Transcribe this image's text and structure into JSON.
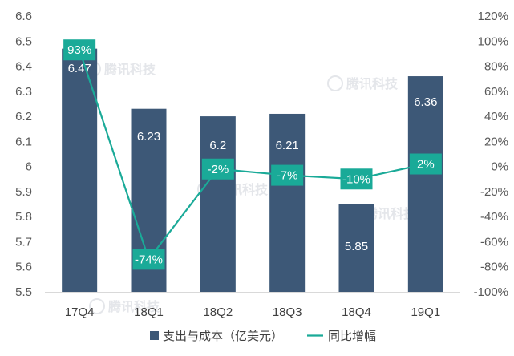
{
  "chart_data": {
    "type": "bar",
    "categories": [
      "17Q4",
      "18Q1",
      "18Q2",
      "18Q3",
      "18Q4",
      "19Q1"
    ],
    "series": [
      {
        "name": "支出与成本（亿美元）",
        "type": "bar",
        "axis": "left",
        "color": "#3d5877",
        "values": [
          6.47,
          6.23,
          6.2,
          6.21,
          5.85,
          6.36
        ],
        "labels": [
          "6.47",
          "6.23",
          "6.2",
          "6.21",
          "5.85",
          "6.36"
        ]
      },
      {
        "name": "同比增幅",
        "type": "line",
        "axis": "right",
        "color": "#1aaa98",
        "values": [
          93,
          -74,
          -2,
          -7,
          -10,
          2
        ],
        "labels": [
          "93%",
          "-74%",
          "-2%",
          "-7%",
          "-10%",
          "2%"
        ]
      }
    ],
    "y_left": {
      "range": [
        5.5,
        6.6
      ],
      "ticks": [
        "5.5",
        "5.6",
        "5.7",
        "5.8",
        "5.9",
        "6",
        "6.1",
        "6.2",
        "6.3",
        "6.4",
        "6.5",
        "6.6"
      ]
    },
    "y_right": {
      "range": [
        -100,
        120
      ],
      "ticks": [
        "-100%",
        "-80%",
        "-60%",
        "-40%",
        "-20%",
        "0%",
        "20%",
        "40%",
        "60%",
        "80%",
        "100%",
        "120%"
      ]
    },
    "legend_position": "bottom",
    "watermark": "腾讯科技"
  }
}
